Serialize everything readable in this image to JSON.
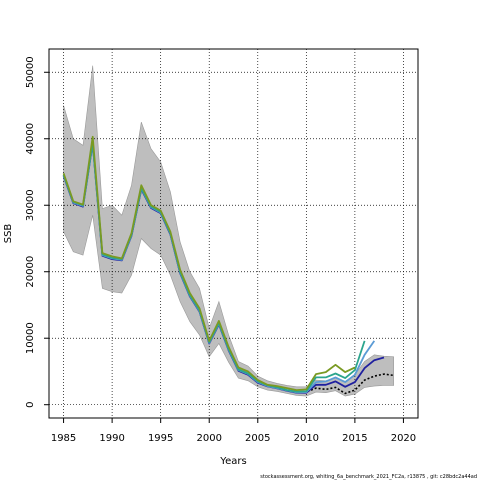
{
  "chart_data": {
    "type": "line",
    "title": "",
    "xlabel": "Years",
    "ylabel": "SSB",
    "caption": "stockassessment.org,  whiting_6a_benchmark_2021_FC2a, r13875 ,  git:  c28bdc2a44ad",
    "xlim": [
      1983.5,
      2021.5
    ],
    "ylim": [
      -2000,
      53500
    ],
    "xticks": [
      1985,
      1990,
      1995,
      2000,
      2005,
      2010,
      2015,
      2020
    ],
    "yticks": [
      0,
      10000,
      20000,
      30000,
      40000,
      50000
    ],
    "grid": true,
    "legend": "none",
    "confidence_band": {
      "color": "#bebebe",
      "x": [
        1985,
        1986,
        1987,
        1988,
        1989,
        1990,
        1991,
        1992,
        1993,
        1994,
        1995,
        1996,
        1997,
        1998,
        1999,
        2000,
        2001,
        2002,
        2003,
        2004,
        2005,
        2006,
        2007,
        2008,
        2009,
        2010,
        2011,
        2012,
        2013,
        2014,
        2015,
        2016,
        2017,
        2018,
        2019
      ],
      "upper": [
        45000,
        40000,
        39000,
        51000,
        29500,
        30000,
        28500,
        33000,
        42500,
        38500,
        36500,
        32000,
        24500,
        20000,
        17500,
        11500,
        15500,
        10500,
        6500,
        5800,
        4300,
        3600,
        3200,
        2900,
        2700,
        2700,
        3700,
        3600,
        4000,
        3500,
        4500,
        6500,
        7500,
        7300,
        7200
      ],
      "lower": [
        26000,
        23000,
        22500,
        28500,
        17500,
        17000,
        16800,
        19500,
        25000,
        23500,
        22500,
        19500,
        15500,
        12500,
        10500,
        7200,
        9200,
        6400,
        4000,
        3600,
        2700,
        2200,
        2000,
        1700,
        1400,
        1300,
        1900,
        1800,
        2100,
        1300,
        1600,
        2600,
        2800,
        2900,
        2900
      ]
    },
    "series": [
      {
        "color": "#000000",
        "dashed": true,
        "x": [
          1985,
          1986,
          1987,
          1988,
          1989,
          1990,
          1991,
          1992,
          1993,
          1994,
          1995,
          1996,
          1997,
          1998,
          1999,
          2000,
          2001,
          2002,
          2003,
          2004,
          2005,
          2006,
          2007,
          2008,
          2009,
          2010,
          2011,
          2012,
          2013,
          2014,
          2015,
          2016,
          2017,
          2018,
          2019
        ],
        "values": [
          34500,
          30500,
          30000,
          39500,
          22500,
          22000,
          21800,
          25500,
          32500,
          29800,
          29000,
          25800,
          20000,
          16500,
          14200,
          9300,
          12200,
          8300,
          5200,
          4600,
          3400,
          2800,
          2500,
          2200,
          1900,
          1900,
          2500,
          2300,
          2600,
          1700,
          2200,
          3700,
          4300,
          4600,
          4400
        ]
      },
      {
        "color": "#1f1f9f",
        "dashed": false,
        "x": [
          1985,
          1986,
          1987,
          1988,
          1989,
          1990,
          1991,
          1992,
          1993,
          1994,
          1995,
          1996,
          1997,
          1998,
          1999,
          2000,
          2001,
          2002,
          2003,
          2004,
          2005,
          2006,
          2007,
          2008,
          2009,
          2010,
          2011,
          2012,
          2013,
          2014,
          2015,
          2016,
          2017,
          2018
        ],
        "values": [
          34400,
          30300,
          29800,
          39300,
          22400,
          21900,
          21700,
          25400,
          32400,
          29600,
          28800,
          25600,
          19800,
          16300,
          14000,
          9200,
          12100,
          8200,
          5100,
          4500,
          3300,
          2750,
          2450,
          2100,
          1800,
          1800,
          3000,
          3000,
          3500,
          2700,
          3400,
          5500,
          6700,
          7100
        ]
      },
      {
        "color": "#5b9bd5",
        "dashed": false,
        "x": [
          1985,
          1986,
          1987,
          1988,
          1989,
          1990,
          1991,
          1992,
          1993,
          1994,
          1995,
          1996,
          1997,
          1998,
          1999,
          2000,
          2001,
          2002,
          2003,
          2004,
          2005,
          2006,
          2007,
          2008,
          2009,
          2010,
          2011,
          2012,
          2013,
          2014,
          2015,
          2016,
          2017
        ],
        "values": [
          34500,
          30400,
          29900,
          39400,
          22500,
          22000,
          21800,
          25500,
          32500,
          29700,
          28900,
          25700,
          19900,
          16400,
          14100,
          9300,
          12200,
          8300,
          5200,
          4600,
          3400,
          2800,
          2500,
          2150,
          1850,
          1900,
          3400,
          3500,
          4100,
          3400,
          4500,
          7500,
          9600
        ]
      },
      {
        "color": "#2ca58d",
        "dashed": false,
        "x": [
          1985,
          1986,
          1987,
          1988,
          1989,
          1990,
          1991,
          1992,
          1993,
          1994,
          1995,
          1996,
          1997,
          1998,
          1999,
          2000,
          2001,
          2002,
          2003,
          2004,
          2005,
          2006,
          2007,
          2008,
          2009,
          2010,
          2011,
          2012,
          2013,
          2014,
          2015,
          2016
        ],
        "values": [
          34600,
          30500,
          30000,
          39500,
          22600,
          22100,
          21900,
          25600,
          32600,
          29800,
          29000,
          25800,
          20000,
          16500,
          14200,
          9400,
          12300,
          8400,
          5300,
          4700,
          3500,
          2900,
          2600,
          2200,
          1950,
          2000,
          4100,
          4100,
          4700,
          4000,
          5200,
          9600
        ]
      },
      {
        "color": "#7a9a22",
        "dashed": false,
        "x": [
          1985,
          1986,
          1987,
          1988,
          1989,
          1990,
          1991,
          1992,
          1993,
          1994,
          1995,
          1996,
          1997,
          1998,
          1999,
          2000,
          2001,
          2002,
          2003,
          2004,
          2005,
          2006,
          2007,
          2008,
          2009,
          2010,
          2011,
          2012,
          2013,
          2014,
          2015
        ],
        "values": [
          34800,
          30600,
          30100,
          40300,
          22800,
          22300,
          22000,
          25800,
          33000,
          30000,
          29200,
          26000,
          20300,
          16800,
          14500,
          9600,
          12600,
          8700,
          5600,
          5000,
          3700,
          3000,
          2800,
          2500,
          2200,
          2300,
          4600,
          4900,
          6000,
          4900,
          5600
        ]
      }
    ]
  }
}
